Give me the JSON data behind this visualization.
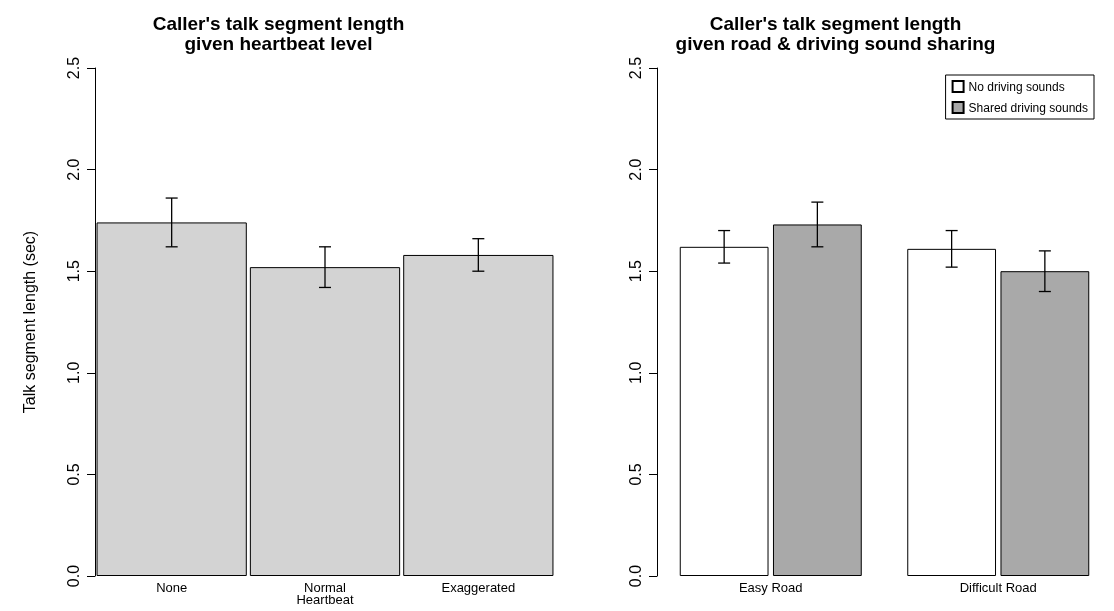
{
  "chart_data": [
    {
      "type": "bar",
      "title": "Caller's talk segment length\ngiven heartbeat level",
      "ylabel": "Talk segment length (sec)",
      "categories": [
        "None",
        "Normal\nHeartbeat",
        "Exaggerated"
      ],
      "values": [
        1.74,
        1.52,
        1.58
      ],
      "errors": [
        0.12,
        0.1,
        0.08
      ],
      "color": "#d3d3d3",
      "ylim": [
        0,
        2.5
      ],
      "yticks": [
        {
          "value": 0,
          "label": "0.0"
        },
        0.5,
        {
          "value": 1,
          "label": "1.0"
        },
        1.5,
        {
          "value": 2,
          "label": "2.0"
        },
        2.5
      ],
      "grid": false,
      "legend": false
    },
    {
      "type": "bar",
      "title": "Caller's talk segment length\ngiven road & driving sound sharing",
      "categories": [
        "Easy Road",
        "Difficult Road"
      ],
      "series": [
        {
          "name": "No driving sounds",
          "color": "#ffffff",
          "values": [
            1.62,
            1.61
          ],
          "errors": [
            0.08,
            0.09
          ]
        },
        {
          "name": "Shared driving sounds",
          "color": "#a9a9a9",
          "values": [
            1.73,
            1.5
          ],
          "errors": [
            0.11,
            0.1
          ]
        }
      ],
      "ylim": [
        0,
        2.5
      ],
      "yticks": [
        {
          "value": 0,
          "label": "0.0"
        },
        0.5,
        {
          "value": 1,
          "label": "1.0"
        },
        1.5,
        {
          "value": 2,
          "label": "2.0"
        },
        2.5
      ],
      "grid": false,
      "legend": "top right"
    }
  ]
}
